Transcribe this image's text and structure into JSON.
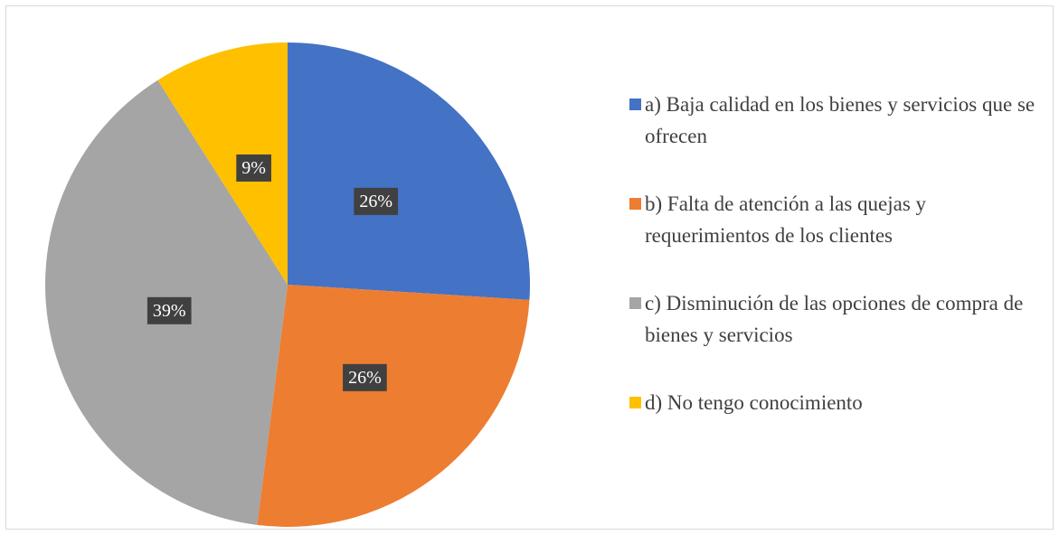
{
  "chart_data": {
    "type": "pie",
    "categories": [
      "a) Baja calidad en los bienes y servicios que se ofrecen",
      "b) Falta de atención a las quejas y requerimientos de los clientes",
      "c) Disminución de las opciones de compra de bienes y servicios",
      "d) No tengo conocimiento"
    ],
    "values": [
      26,
      26,
      39,
      9
    ],
    "value_labels": [
      "26%",
      "26%",
      "39%",
      "9%"
    ],
    "colors": [
      "#4472c4",
      "#ed7d31",
      "#a5a5a5",
      "#ffc000"
    ],
    "legend": "right"
  }
}
